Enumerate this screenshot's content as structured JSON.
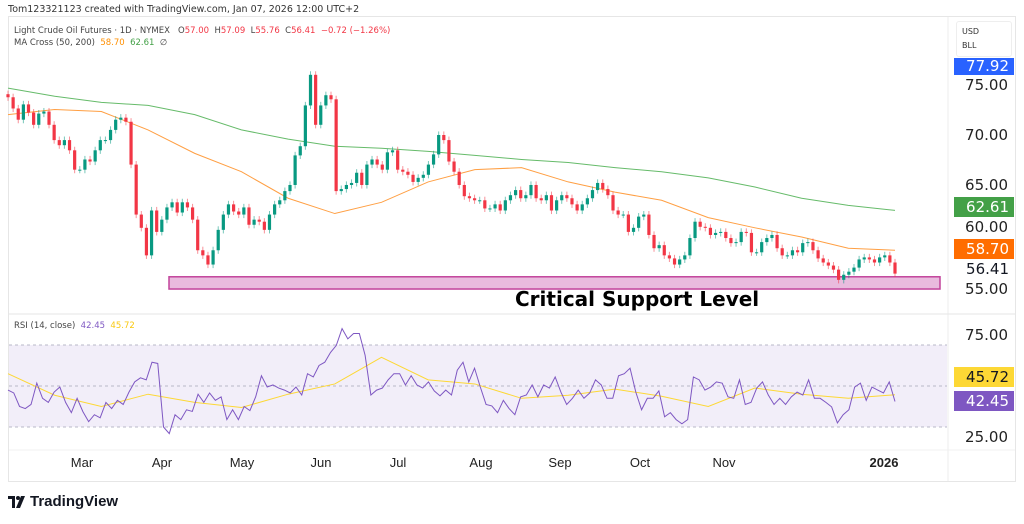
{
  "header": {
    "text": "Tom123321123 created with TradingView.com, Jan 07, 2026 12:00 UTC+2"
  },
  "legend": {
    "symbol": "Light Crude Oil Futures · 1D · NYMEX",
    "open_label": "O",
    "open": "57.00",
    "high_label": "H",
    "high": "57.09",
    "low_label": "L",
    "low": "55.76",
    "close_label": "C",
    "close": "56.41",
    "change": "−0.72 (−1.26%)",
    "ma_name": "MA Cross (50, 200)",
    "ma50": "58.70",
    "ma200": "62.61",
    "ma_icon": "∅",
    "rsi_name": "RSI (14, close)",
    "rsi": "42.45",
    "rsi_ma": "45.72"
  },
  "units": {
    "currency": "USD",
    "unit": "BLL"
  },
  "price_scale": {
    "ticks": [
      "75.00",
      "70.00",
      "65.00",
      "60.00",
      "55.00"
    ],
    "top_label": "77.92",
    "ma200_label": "62.61",
    "ma50_label": "58.70",
    "last_price": "56.41"
  },
  "rsi_scale": {
    "ticks": [
      "75.00",
      "25.00"
    ],
    "rsi_ma_label": "45.72",
    "rsi_label": "42.45"
  },
  "time_axis": [
    "Mar",
    "Apr",
    "May",
    "Jun",
    "Jul",
    "Aug",
    "Sep",
    "Oct",
    "Nov",
    "2026"
  ],
  "annotation": {
    "text": "Critical Support Level",
    "zone": [
      54.9,
      56.1
    ]
  },
  "logo": {
    "text": "TradingView"
  },
  "colors": {
    "up": "#089981",
    "down": "#f23645",
    "ma50": "#ff9f43",
    "ma200": "#66bb6a",
    "rsi": "#7e57c2",
    "rsi_ma": "#fdd835",
    "zone": "#e9bbde",
    "zone_border": "#c2449b",
    "blue_label": "#2962ff"
  },
  "chart_data": [
    {
      "type": "candlestick",
      "x_range": [
        "2025-02",
        "2026-01-07"
      ],
      "ylim": [
        54.5,
        78.5
      ],
      "closes": [
        73.7,
        72.6,
        71.5,
        73,
        72.2,
        71,
        72.1,
        72.3,
        71,
        69.5,
        69,
        69.5,
        68.5,
        66.6,
        66.6,
        67.6,
        67.4,
        68.5,
        69.5,
        69.5,
        70.5,
        71.5,
        71.7,
        71.3,
        67.1,
        62.2,
        60.9,
        58.2,
        62.6,
        60.5,
        61.7,
        62.9,
        63.4,
        62.4,
        63.4,
        62.9,
        61.7,
        58.7,
        58.2,
        57.3,
        58.7,
        60.7,
        62.2,
        63.2,
        62.5,
        62.2,
        62.9,
        61.2,
        61.7,
        61.5,
        60.7,
        62.2,
        63.2,
        63.6,
        64.5,
        65.1,
        68,
        68.9,
        72.9,
        75.9,
        71,
        72.9,
        73.9,
        73.5,
        64.5,
        64.7,
        65.1,
        65.3,
        66.3,
        65.1,
        67.1,
        67.6,
        67.1,
        66.6,
        68.3,
        68.5,
        66.6,
        66.4,
        66.1,
        65.4,
        65.8,
        66.1,
        67.1,
        68.1,
        70,
        69.5,
        67.4,
        66.4,
        65.1,
        64,
        63.8,
        63.6,
        63.6,
        62.8,
        62.8,
        63.2,
        62.6,
        63.6,
        64.1,
        64.6,
        63.8,
        64.1,
        65.1,
        63.8,
        63.6,
        64.1,
        62.6,
        63.6,
        64.1,
        63.8,
        63.2,
        62.6,
        63.2,
        63.8,
        64.6,
        65.3,
        64.7,
        64.1,
        62.6,
        62.2,
        62.2,
        60.5,
        60.9,
        62,
        62.2,
        60.2,
        58.9,
        59.2,
        58.2,
        57.9,
        57.3,
        57.8,
        58.2,
        59.9,
        61.5,
        61,
        60.9,
        60.2,
        60.4,
        60.5,
        59.9,
        59.4,
        59.5,
        60.5,
        60.4,
        58.5,
        58.5,
        59.5,
        59.9,
        60.2,
        58.9,
        58.2,
        58.2,
        58.7,
        58.5,
        59.4,
        59.5,
        58.7,
        57.9,
        57.5,
        57.2,
        56.8,
        55.8,
        56.3,
        56.6,
        57,
        57.8,
        58,
        57.8,
        57.5,
        58,
        58.2,
        57.5,
        56.41
      ],
      "ma50": [
        72.0,
        72.5,
        72.3,
        70.5,
        68.2,
        66.4,
        63.8,
        62.3,
        63.4,
        65.4,
        66.6,
        66.8,
        65.4,
        64.4,
        63.6,
        61.9,
        60.9,
        60.0,
        58.9,
        58.7
      ],
      "ma200": [
        74.6,
        73.8,
        73.2,
        72.9,
        72.0,
        70.5,
        69.6,
        68.9,
        68.7,
        68.4,
        68.0,
        67.6,
        67.3,
        66.8,
        66.4,
        65.8,
        64.9,
        63.8,
        63.1,
        62.61
      ]
    },
    {
      "type": "line",
      "ylim": [
        25,
        75
      ],
      "bands": [
        30,
        50,
        70
      ],
      "rsi": [
        48,
        46.6,
        40,
        39,
        41,
        51.4,
        44,
        42,
        47,
        49.5,
        42,
        37,
        44,
        37.5,
        32.6,
        36,
        34.5,
        42,
        39,
        43,
        41,
        47,
        52,
        54,
        53,
        61.6,
        61,
        30,
        26.8,
        36,
        33.6,
        38.4,
        37.6,
        46,
        42,
        46.6,
        43,
        44.7,
        33.6,
        38.4,
        33.6,
        40,
        38,
        44.7,
        55,
        49.5,
        50.5,
        49,
        48,
        46.6,
        49.5,
        45.6,
        56,
        54.4,
        60,
        61.6,
        66.4,
        69.8,
        78,
        73,
        75.6,
        75.6,
        65,
        45.6,
        48,
        49,
        53,
        56,
        56,
        50.5,
        55,
        50.5,
        49,
        52,
        47.6,
        45.2,
        48,
        45.6,
        57.7,
        61.6,
        52,
        58.7,
        49.5,
        41,
        40.3,
        37,
        43,
        39,
        36,
        44.7,
        45.6,
        50.5,
        44.7,
        50.5,
        49,
        54.4,
        47,
        41,
        44,
        48,
        44,
        46.6,
        53,
        50.5,
        44,
        44,
        55,
        56,
        58.7,
        47,
        38.4,
        44,
        44,
        47.6,
        35,
        37,
        33.6,
        31.6,
        33.6,
        54.4,
        53,
        48,
        49.5,
        52,
        51.4,
        44.7,
        44,
        53,
        41,
        42,
        49,
        52,
        45.6,
        41,
        44,
        41,
        44.7,
        47,
        45.6,
        53,
        44,
        44,
        42,
        39.8,
        32,
        36,
        38.4,
        49.5,
        51.4,
        43,
        49.5,
        48,
        46.6,
        52,
        42.45
      ],
      "rsi_ma": [
        56,
        45.5,
        40,
        46,
        42,
        39.5,
        46,
        51,
        64,
        53,
        51,
        44,
        45.5,
        48.5,
        45,
        40,
        49,
        46,
        44,
        45.72
      ]
    }
  ]
}
